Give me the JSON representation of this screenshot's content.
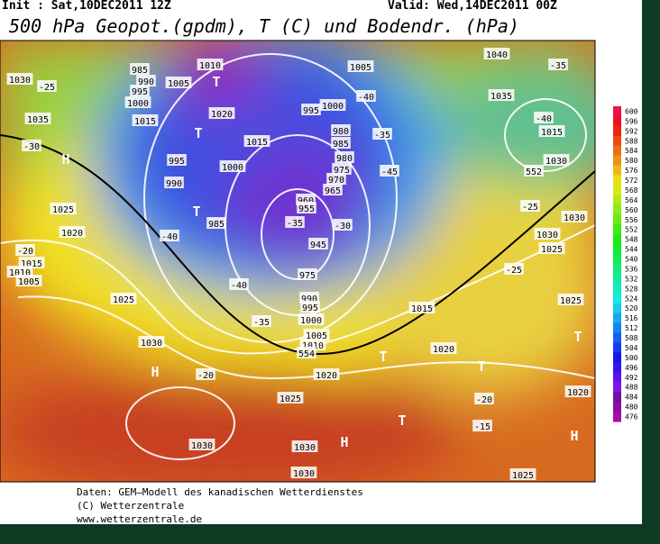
{
  "header": {
    "init": "Init : Sat,10DEC2011 12Z",
    "valid": "Valid: Wed,14DEC2011 00Z",
    "title": "500 hPa Geopot.(gpdm), T (C) und Bodendr. (hPa)"
  },
  "legend": {
    "levels": [
      600,
      596,
      592,
      588,
      584,
      580,
      576,
      572,
      568,
      564,
      560,
      556,
      552,
      548,
      544,
      540,
      536,
      532,
      528,
      524,
      520,
      516,
      512,
      508,
      504,
      500,
      496,
      492,
      488,
      484,
      480,
      476
    ]
  },
  "map": {
    "labels": [
      "1030",
      "1035",
      "-30",
      "H",
      "1025",
      "1020",
      "-20",
      "1015",
      "1010",
      "1005",
      "1025",
      "1030",
      "H",
      "-20",
      "1025",
      "1030",
      "1030",
      "H",
      "1030",
      "T",
      "T",
      "1020",
      "1015",
      "1020",
      "T",
      "-20",
      "-15",
      "1025",
      "H",
      "1020",
      "T",
      "1025",
      "-25",
      "1030",
      "1025",
      "1030",
      "-25",
      "1040",
      "-35",
      "1035",
      "-40",
      "1015",
      "1030",
      "985",
      "990",
      "995",
      "1000",
      "1005",
      "1010",
      "T",
      "1015",
      "1020",
      "1015",
      "995",
      "1000",
      "980",
      "985",
      "980",
      "975",
      "970",
      "965",
      "960",
      "955",
      "-35",
      "-30",
      "945",
      "975",
      "990",
      "995",
      "1000",
      "1005",
      "1010",
      "T",
      "985",
      "-40",
      "-40",
      "-35",
      "T",
      "995",
      "990",
      "1000",
      "-40",
      "-45",
      "-35",
      "552",
      "554",
      "1005",
      "-25"
    ]
  },
  "footer": {
    "lines": [
      "Daten: GEM–Modell des kanadischen Wetterdienstes",
      "(C) Wetterzentrale",
      "www.wetterzentrale.de"
    ]
  }
}
